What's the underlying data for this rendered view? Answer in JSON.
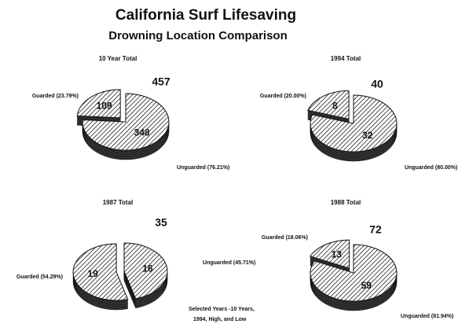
{
  "title": "California Surf Lifesaving",
  "subtitle": "Drowning Location Comparison",
  "note": [
    "Selected Years -10 Years,",
    "1994, High, and Low"
  ],
  "chart_data": [
    {
      "type": "pie",
      "title": "10 Year Total",
      "total": 457,
      "categories": [
        "Guarded (23.79%)",
        "Unguarded (76.21%)"
      ],
      "values": [
        109,
        348
      ]
    },
    {
      "type": "pie",
      "title": "1994 Total",
      "total": 40,
      "categories": [
        "Guarded (20.00%)",
        "Unguarded (80.00%)"
      ],
      "values": [
        8,
        32
      ]
    },
    {
      "type": "pie",
      "title": "1987 Total",
      "total": 35,
      "categories": [
        "Guarded (54.29%)",
        "Unguarded (45.71%)"
      ],
      "values": [
        19,
        16
      ]
    },
    {
      "type": "pie",
      "title": "1988 Total",
      "total": 72,
      "categories": [
        "Guarded (18.06%)",
        "Unguarded (81.94%)"
      ],
      "values": [
        13,
        59
      ]
    }
  ]
}
